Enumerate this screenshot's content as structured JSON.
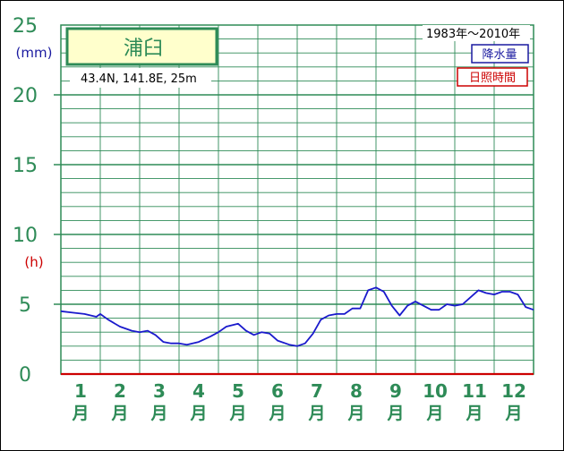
{
  "chart_data": {
    "type": "line",
    "station": "浦臼",
    "coords": "43.4N,  141.8E,  25m",
    "period": "1983年～2010年",
    "legend": {
      "precip": "降水量",
      "sunshine": "日照時間"
    },
    "units": {
      "precip": "(mm)",
      "sunshine": "(h)"
    },
    "ylim": [
      0,
      25
    ],
    "yticks": [
      "0",
      "5",
      "10",
      "15",
      "20",
      "25"
    ],
    "months": [
      "1",
      "2",
      "3",
      "4",
      "5",
      "6",
      "7",
      "8",
      "9",
      "10",
      "11",
      "12"
    ],
    "month_kanji": "月",
    "series": [
      {
        "name": "日照時間",
        "color": "#1a1acc",
        "x": [
          0.0,
          0.3,
          0.6,
          0.9,
          1.0,
          1.2,
          1.5,
          1.8,
          2.0,
          2.2,
          2.4,
          2.6,
          2.8,
          3.0,
          3.2,
          3.5,
          3.8,
          4.0,
          4.2,
          4.5,
          4.7,
          4.9,
          5.1,
          5.3,
          5.5,
          5.8,
          6.0,
          6.2,
          6.4,
          6.6,
          6.8,
          7.0,
          7.2,
          7.4,
          7.6,
          7.8,
          8.0,
          8.2,
          8.4,
          8.6,
          8.8,
          9.0,
          9.2,
          9.4,
          9.6,
          9.8,
          10.0,
          10.2,
          10.4,
          10.6,
          10.8,
          11.0,
          11.2,
          11.4,
          11.6,
          11.8,
          12.0
        ],
        "values": [
          4.5,
          4.4,
          4.3,
          4.1,
          4.3,
          3.9,
          3.4,
          3.1,
          3.0,
          3.1,
          2.8,
          2.3,
          2.2,
          2.2,
          2.1,
          2.3,
          2.7,
          3.0,
          3.4,
          3.6,
          3.1,
          2.8,
          3.0,
          2.9,
          2.4,
          2.1,
          2.0,
          2.2,
          2.9,
          3.9,
          4.2,
          4.3,
          4.3,
          4.7,
          4.7,
          6.0,
          6.2,
          5.9,
          4.9,
          4.2,
          4.9,
          5.2,
          4.9,
          4.6,
          4.6,
          5.0,
          4.9,
          5.0,
          5.5,
          6.0,
          5.8,
          5.7,
          5.9,
          5.9,
          5.7,
          4.8,
          4.6
        ]
      },
      {
        "name": "降水量",
        "color": "#cc0000",
        "x": [
          0,
          12
        ],
        "values": [
          0,
          0
        ]
      }
    ]
  }
}
